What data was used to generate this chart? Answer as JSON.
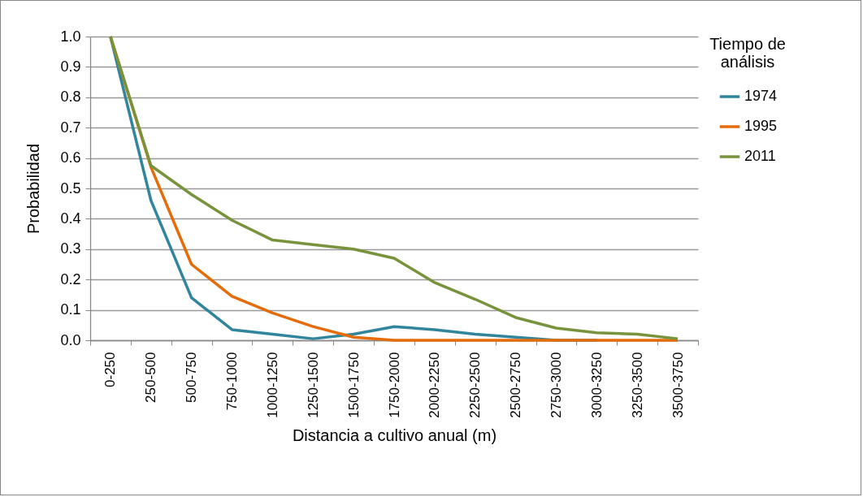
{
  "chart_data": {
    "type": "line",
    "xlabel": "Distancia a cultivo anual (m)",
    "ylabel": "Probabilidad",
    "legend_title": "Tiempo de análisis",
    "categories": [
      "0-250",
      "250-500",
      "500-750",
      "750-1000",
      "1000-1250",
      "1250-1500",
      "1500-1750",
      "1750-2000",
      "2000-2250",
      "2250-2500",
      "2500-2750",
      "2750-3000",
      "3000-3250",
      "3250-3500",
      "3500-3750"
    ],
    "series": [
      {
        "name": "1974",
        "color": "#31859c",
        "values": [
          1.0,
          0.46,
          0.14,
          0.035,
          0.02,
          0.005,
          0.02,
          0.045,
          0.035,
          0.02,
          0.01,
          0,
          0,
          null,
          null
        ]
      },
      {
        "name": "1995",
        "color": "#e46c0a",
        "values": [
          1.0,
          0.57,
          0.25,
          0.145,
          0.09,
          0.045,
          0.01,
          0,
          0,
          0,
          0,
          0,
          0,
          0,
          0
        ]
      },
      {
        "name": "2011",
        "color": "#77933c",
        "values": [
          1.0,
          0.575,
          0.48,
          0.395,
          0.33,
          0.315,
          0.3,
          0.27,
          0.19,
          0.135,
          0.075,
          0.04,
          0.025,
          0.02,
          0.005
        ]
      }
    ],
    "ylim": [
      0,
      1.0
    ],
    "yticks": [
      {
        "value": 0,
        "label": "0.0"
      },
      0.1,
      0.2,
      0.3,
      0.4,
      0.5,
      0.6,
      0.7,
      0.8,
      0.9,
      {
        "value": 1,
        "label": "1.0"
      }
    ],
    "grid": "y",
    "legend": "right",
    "marker": "none",
    "line_style": "solid"
  }
}
